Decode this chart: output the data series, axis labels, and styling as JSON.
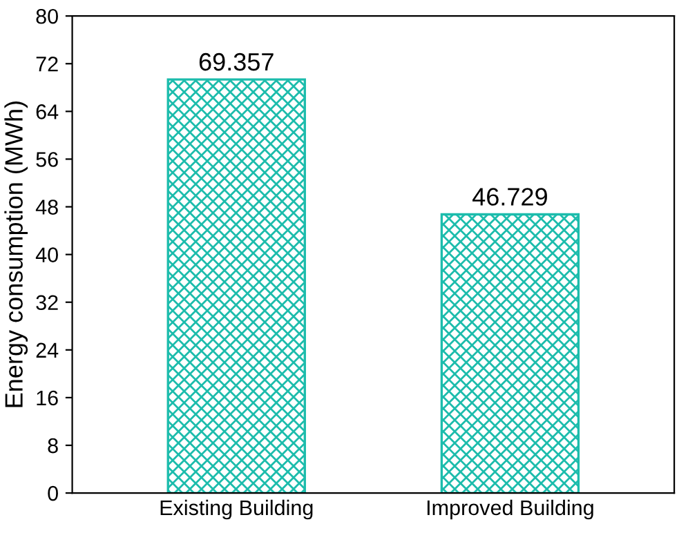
{
  "chart_data": {
    "type": "bar",
    "ylabel": "Energy consumption (MWh)",
    "categories": [
      "Existing Building",
      "Improved Building"
    ],
    "values": [
      69.357,
      46.729
    ],
    "color": "#1cbcac",
    "ylim": [
      0,
      80
    ],
    "yticks": [
      0,
      8,
      16,
      24,
      32,
      40,
      48,
      56,
      64,
      72,
      80
    ],
    "data_labels": true,
    "grid": false
  }
}
